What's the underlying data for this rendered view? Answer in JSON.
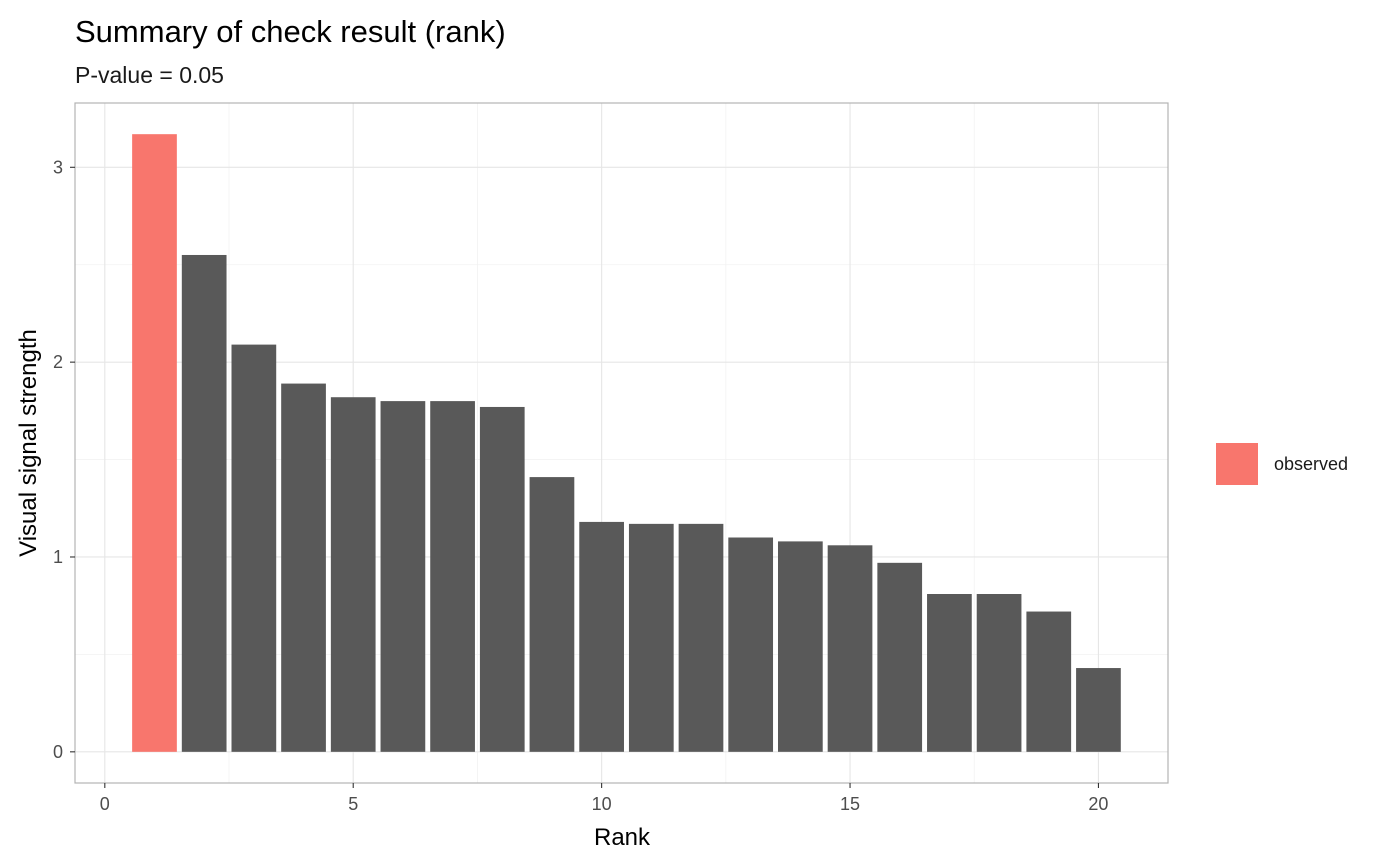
{
  "chart_data": {
    "type": "bar",
    "title": "Summary of check result (rank)",
    "subtitle": "P-value = 0.05",
    "xlabel": "Rank",
    "ylabel": "Visual signal strength",
    "xlim": [
      -0.6,
      21.4
    ],
    "ylim": [
      -0.16,
      3.33
    ],
    "x_ticks": [
      0,
      5,
      10,
      15,
      20
    ],
    "y_ticks": [
      0,
      1,
      2,
      3
    ],
    "grid": true,
    "legend_position": "right",
    "colors": {
      "observed": "#F8766D",
      "null": "#595959",
      "panel_border": "#b3b3b3",
      "grid_major": "#e6e6e6",
      "grid_minor": "#f2f2f2"
    },
    "x": [
      1,
      2,
      3,
      4,
      5,
      6,
      7,
      8,
      9,
      10,
      11,
      12,
      13,
      14,
      15,
      16,
      17,
      18,
      19,
      20
    ],
    "values": [
      3.17,
      2.55,
      2.09,
      1.89,
      1.82,
      1.8,
      1.8,
      1.77,
      1.41,
      1.18,
      1.17,
      1.17,
      1.1,
      1.08,
      1.06,
      0.97,
      0.81,
      0.81,
      0.72,
      0.43
    ],
    "observed_rank": 1,
    "legend": [
      {
        "label": "observed",
        "color": "#F8766D"
      }
    ]
  }
}
